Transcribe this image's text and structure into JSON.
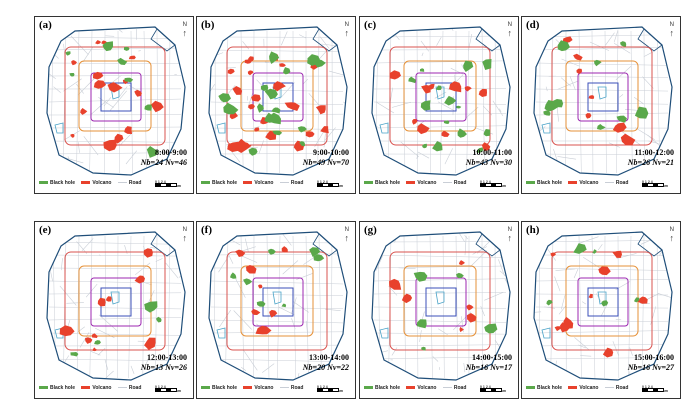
{
  "legend": {
    "black_hole": "Black hole",
    "volcano": "Volcano",
    "road": "Road",
    "black_hole_color": "#5aa84a",
    "volcano_color": "#e8412c",
    "road_color": "#c9ced6"
  },
  "north_label": "N",
  "scale_bar": {
    "ticks": "0 1 2  4",
    "unit": "km"
  },
  "ring_colors": {
    "outer_boundary": "#1f4e79",
    "ring5": "#d9534f",
    "ring4": "#e69138",
    "ring3": "#9c27b0",
    "ring2": "#3b4fb8",
    "water": "#4aa3c8"
  },
  "panels": [
    {
      "label": "(a)",
      "time": "8:00-9:00",
      "nb": "Nb=24",
      "nv": "Nv=46"
    },
    {
      "label": "(b)",
      "time": "9:00-10:00",
      "nb": "Nb=49",
      "nv": "Nv=70"
    },
    {
      "label": "(c)",
      "time": "10:00-11:00",
      "nb": "Nb=43",
      "nv": "Nv=30"
    },
    {
      "label": "(d)",
      "time": "11:00-12:00",
      "nb": "Nb=26",
      "nv": "Nv=21"
    },
    {
      "label": "(e)",
      "time": "12:00-13:00",
      "nb": "Nb=13",
      "nv": "Nv=26"
    },
    {
      "label": "(f)",
      "time": "13:00-14:00",
      "nb": "Nb=20",
      "nv": "Nv=22"
    },
    {
      "label": "(g)",
      "time": "14:00-15:00",
      "nb": "Nb=16",
      "nv": "Nv=17"
    },
    {
      "label": "(h)",
      "time": "15:00-16:00",
      "nb": "Nb=16",
      "nv": "Nv=27"
    }
  ]
}
